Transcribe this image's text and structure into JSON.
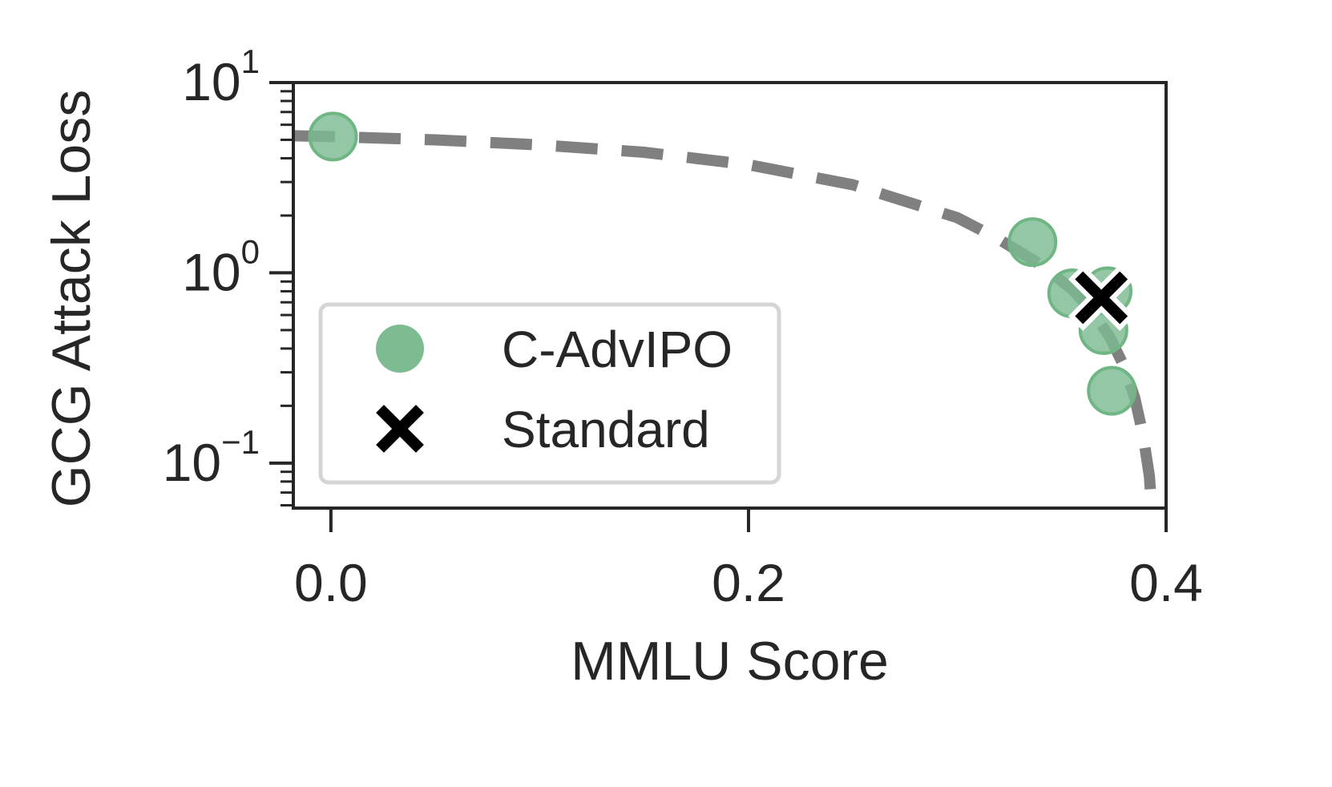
{
  "chart_data": {
    "type": "scatter",
    "title": "",
    "xlabel": "MMLU Score",
    "ylabel": "GCG Attack Loss",
    "xlim": [
      -0.018,
      0.4
    ],
    "ylim": [
      0.058,
      10
    ],
    "yscale": "log",
    "grid": false,
    "legend_position": "lower-left",
    "x_ticks": [
      {
        "value": 0.0,
        "label": "0.0"
      },
      {
        "value": 0.2,
        "label": "0.2"
      },
      {
        "value": 0.4,
        "label": "0.4"
      }
    ],
    "y_ticks": [
      {
        "value": 0.1,
        "base": "10",
        "exponent": "−1"
      },
      {
        "value": 1,
        "base": "10",
        "exponent": "0"
      },
      {
        "value": 10,
        "base": "10",
        "exponent": "1"
      }
    ],
    "series": [
      {
        "name": "C-AdvIPO",
        "marker": "circle",
        "color": "#7dbb91",
        "x": [
          0.001,
          0.336,
          0.355,
          0.372,
          0.37,
          0.374
        ],
        "y": [
          5.2,
          1.45,
          0.78,
          0.8,
          0.5,
          0.24
        ]
      },
      {
        "name": "Standard",
        "marker": "x",
        "color": "#000000",
        "x": [
          0.369
        ],
        "y": [
          0.74
        ]
      }
    ],
    "frontier_curve": {
      "style": "dashed",
      "color": "#808080",
      "x": [
        -0.018,
        0.0,
        0.05,
        0.1,
        0.15,
        0.2,
        0.25,
        0.3,
        0.32,
        0.34,
        0.355,
        0.365,
        0.373,
        0.38,
        0.385,
        0.389,
        0.392,
        0.393
      ],
      "y": [
        5.25,
        5.2,
        5.0,
        4.7,
        4.3,
        3.7,
        2.9,
        1.95,
        1.5,
        1.1,
        0.82,
        0.62,
        0.46,
        0.32,
        0.22,
        0.14,
        0.085,
        0.058
      ]
    }
  }
}
